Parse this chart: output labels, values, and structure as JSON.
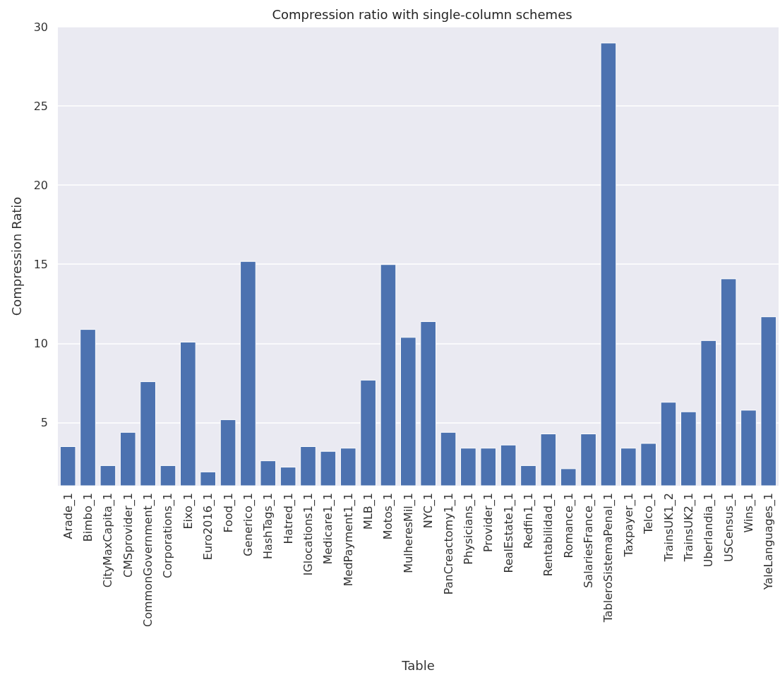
{
  "chart_data": {
    "type": "bar",
    "title": "Compression ratio with single-column schemes",
    "xlabel": "Table",
    "ylabel": "Compression Ratio",
    "categories": [
      "Arade_1",
      "Bimbo_1",
      "CityMaxCapita_1",
      "CMSprovider_1",
      "CommonGovernment_1",
      "Corporations_1",
      "Eixo_1",
      "Euro2016_1",
      "Food_1",
      "Generico_1",
      "HashTags_1",
      "Hatred_1",
      "IGlocations1_1",
      "Medicare1_1",
      "MedPayment1_1",
      "MLB_1",
      "Motos_1",
      "MulheresMil_1",
      "NYC_1",
      "PanCreactomy1_1",
      "Physicians_1",
      "Provider_1",
      "RealEstate1_1",
      "Redfin1_1",
      "Rentabilidad_1",
      "Romance_1",
      "SalariesFrance_1",
      "TableroSistemaPenal_1",
      "Taxpayer_1",
      "Telco_1",
      "TrainsUK1_2",
      "TrainsUK2_1",
      "Uberlandia_1",
      "USCensus_1",
      "Wins_1",
      "YaleLanguages_1"
    ],
    "values": [
      3.5,
      10.9,
      2.3,
      4.4,
      7.6,
      2.3,
      10.1,
      1.9,
      5.2,
      15.2,
      2.6,
      2.2,
      3.5,
      3.2,
      3.4,
      7.7,
      15.0,
      10.4,
      11.4,
      4.4,
      3.4,
      3.4,
      3.6,
      2.3,
      4.3,
      2.1,
      4.3,
      29.0,
      3.4,
      3.7,
      6.3,
      5.7,
      10.2,
      14.1,
      5.8,
      11.7
    ],
    "color": "#4c72b0",
    "ylim": [
      1,
      30
    ],
    "yticks": [
      5,
      10,
      15,
      20,
      25,
      30
    ],
    "grid": "y"
  }
}
